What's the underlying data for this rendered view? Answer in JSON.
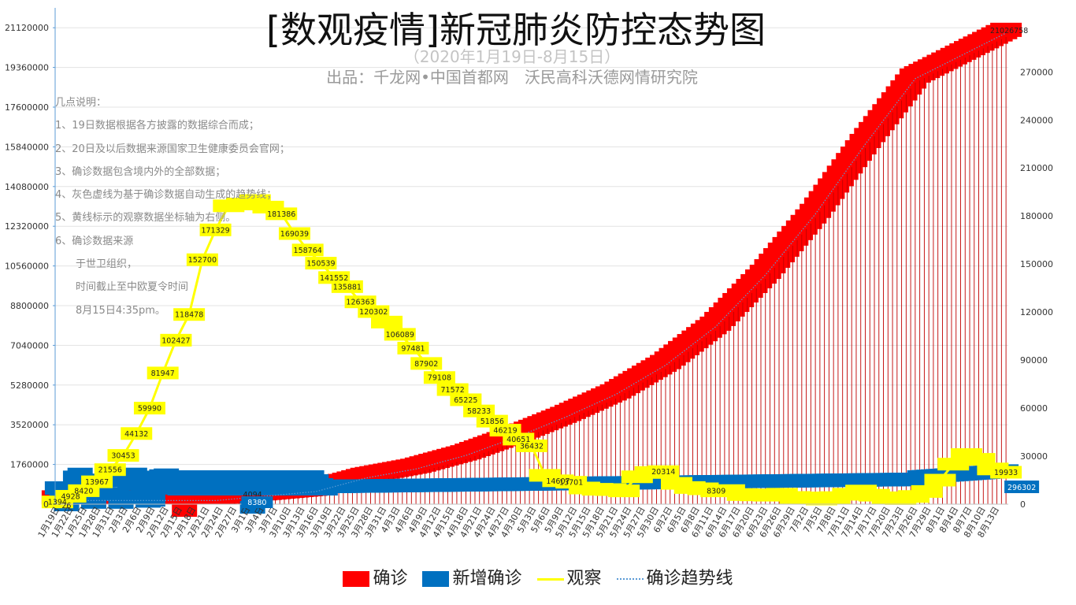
{
  "header": {
    "title": "[数观疫情]新冠肺炎防控态势图",
    "subtitle": "（2020年1月19日-8月15日）",
    "producer": "出品：千龙网•中国首都网　沃民高科沃德网情研究院"
  },
  "notes": [
    "几点说明：",
    "1、19日数据根据各方披露的数据综合而成；",
    "2、20日及以后数据来源国家卫生健康委员会官网；",
    "3、确诊数据包含境内外的全部数据；",
    "4、灰色虚线为基于确诊数据自动生成的趋势线；",
    "5、黄线标示的观察数据坐标轴为右侧。",
    "6、确诊数据来源",
    "　　于世卫组织，",
    "　　时间截止至中欧夏令时间",
    "　　8月15日4:35pm。"
  ],
  "legend": [
    "确诊",
    "新增确诊",
    "观察",
    "确诊趋势线"
  ],
  "colors": {
    "confirmed": "#ff0000",
    "new_cases": "#0070c0",
    "observation": "#ffff00",
    "trend": "#5b9bd5"
  },
  "chart_data": {
    "type": "bar",
    "left_axis": {
      "ylim": [
        0,
        22000000
      ],
      "ticks": [
        "0",
        "1760000",
        "3520000",
        "5280000",
        "7040000",
        "8800000",
        "10560000",
        "12320000",
        "14080000",
        "15840000",
        "17600000",
        "19360000",
        "21120000"
      ]
    },
    "right_axis": {
      "ylim": [
        0,
        310000
      ],
      "ticks": [
        "0",
        "30000",
        "60000",
        "90000",
        "120000",
        "150000",
        "180000",
        "210000",
        "240000",
        "270000"
      ]
    },
    "x_tick_labels": [
      "1月19日",
      "1月22日",
      "1月25日",
      "1月28日",
      "1月31日",
      "2月3日",
      "2月6日",
      "2月9日",
      "2月12日",
      "2月15日",
      "2月18日",
      "2月21日",
      "2月24日",
      "2月27日",
      "3月1日",
      "3月4日",
      "3月7日",
      "3月10日",
      "3月13日",
      "3月16日",
      "3月19日",
      "3月22日",
      "3月25日",
      "3月28日",
      "3月31日",
      "4月3日",
      "4月6日",
      "4月9日",
      "4月12日",
      "4月15日",
      "4月18日",
      "4月21日",
      "4月24日",
      "4月27日",
      "4月30日",
      "5月3日",
      "5月6日",
      "5月9日",
      "5月12日",
      "5月15日",
      "5月18日",
      "5月21日",
      "5月24日",
      "5月27日",
      "5月30日",
      "6月2日",
      "6月5日",
      "6月8日",
      "6月11日",
      "6月14日",
      "6月17日",
      "6月20日",
      "6月23日",
      "6月26日",
      "6月29日",
      "7月2日",
      "7月5日",
      "7月8日",
      "7月11日",
      "7月14日",
      "7月17日",
      "7月20日",
      "7月23日",
      "7月26日",
      "7月29日",
      "8月1日",
      "8月4日",
      "8月7日",
      "8月10日",
      "8月13日"
    ],
    "confirmed_anchors": [
      [
        0,
        300000
      ],
      [
        35,
        300000
      ],
      [
        46,
        500000
      ],
      [
        57,
        700000
      ],
      [
        68,
        1300000
      ],
      [
        79,
        1700000
      ],
      [
        90,
        2300000
      ],
      [
        101,
        3100000
      ],
      [
        112,
        4000000
      ],
      [
        123,
        5000000
      ],
      [
        134,
        6300000
      ],
      [
        145,
        8000000
      ],
      [
        156,
        10300000
      ],
      [
        167,
        13000000
      ],
      [
        178,
        16100000
      ],
      [
        189,
        19000000
      ],
      [
        209,
        21026758
      ]
    ],
    "confirmed_labels": [
      "21026758"
    ],
    "observation": [
      1394,
      4928,
      8420,
      13967,
      21556,
      30453,
      44132,
      59990,
      81947,
      102427,
      118478,
      152700,
      171329,
      186354,
      187518,
      189660,
      185555,
      181386,
      169039,
      158764,
      150539,
      141552,
      135881,
      126363,
      120302,
      113739,
      106089,
      97481,
      87902,
      79108,
      71572,
      65225,
      58233,
      51856,
      46219,
      40651,
      36432,
      18000,
      14607,
      13701,
      10100,
      9300,
      9100,
      8300,
      17100,
      19800,
      20314,
      13000,
      10400,
      9600,
      8309,
      8480,
      6000,
      5800,
      5600,
      6200,
      4200,
      3900,
      3200,
      4100,
      6200,
      8200,
      5600,
      4000,
      3500,
      4800,
      7920,
      15000,
      25000,
      31000,
      28000,
      22000,
      19933
    ],
    "observation_labels": [
      "1394",
      "4928",
      "8420",
      "13967",
      "21556",
      "30453",
      "44132",
      "59990",
      "81947",
      "102427",
      "118478",
      "152700",
      "171329",
      "181386",
      "169039",
      "158764",
      "150539",
      "141552",
      "135881",
      "126363",
      "120302",
      "106089",
      "97481",
      "87902",
      "79108",
      "71572",
      "65225",
      "58233",
      "51856",
      "46219",
      "40651",
      "36432",
      "14607",
      "13701",
      "20314",
      "8309",
      "19933"
    ],
    "new_cases_labels": [
      "26",
      "4094",
      "8380",
      "296302"
    ],
    "new_cases_end": 296302
  }
}
